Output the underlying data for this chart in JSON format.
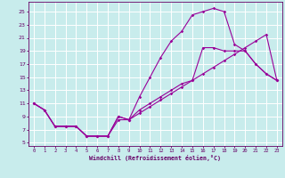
{
  "title": "",
  "xlabel": "Windchill (Refroidissement éolien,°C)",
  "bg_color": "#c8ecec",
  "grid_color": "#ffffff",
  "line_color": "#990099",
  "xlim": [
    -0.5,
    23.5
  ],
  "ylim": [
    4.5,
    26.5
  ],
  "xticks": [
    0,
    1,
    2,
    3,
    4,
    5,
    6,
    7,
    8,
    9,
    10,
    11,
    12,
    13,
    14,
    15,
    16,
    17,
    18,
    19,
    20,
    21,
    22,
    23
  ],
  "yticks": [
    5,
    7,
    9,
    11,
    13,
    15,
    17,
    19,
    21,
    23,
    25
  ],
  "line1_x": [
    0,
    1,
    2,
    3,
    4,
    5,
    6,
    7,
    8,
    9,
    10,
    11,
    12,
    13,
    14,
    15,
    16,
    17,
    18,
    19,
    20,
    21,
    22,
    23
  ],
  "line1_y": [
    11,
    10,
    7.5,
    7.5,
    7.5,
    6,
    6,
    6,
    9,
    8.5,
    12,
    15,
    18,
    20.5,
    22,
    24.5,
    25,
    25.5,
    25,
    20,
    19,
    17,
    15.5,
    14.5
  ],
  "line2_x": [
    0,
    1,
    2,
    3,
    4,
    5,
    6,
    7,
    8,
    9,
    10,
    11,
    12,
    13,
    14,
    15,
    16,
    17,
    18,
    19,
    20,
    21,
    22,
    23
  ],
  "line2_y": [
    11,
    10,
    7.5,
    7.5,
    7.5,
    6,
    6,
    6,
    8.5,
    8.5,
    9.5,
    10.5,
    11.5,
    12.5,
    13.5,
    14.5,
    15.5,
    16.5,
    17.5,
    18.5,
    19.5,
    20.5,
    21.5,
    14.5
  ],
  "line3_x": [
    0,
    1,
    2,
    3,
    4,
    5,
    6,
    7,
    8,
    9,
    10,
    11,
    12,
    13,
    14,
    15,
    16,
    17,
    18,
    19,
    20,
    21,
    22,
    23
  ],
  "line3_y": [
    11,
    10,
    7.5,
    7.5,
    7.5,
    6,
    6,
    6,
    9,
    8.5,
    10,
    11,
    12,
    13,
    14,
    14.5,
    19.5,
    19.5,
    19,
    19,
    19,
    17,
    15.5,
    14.5
  ]
}
